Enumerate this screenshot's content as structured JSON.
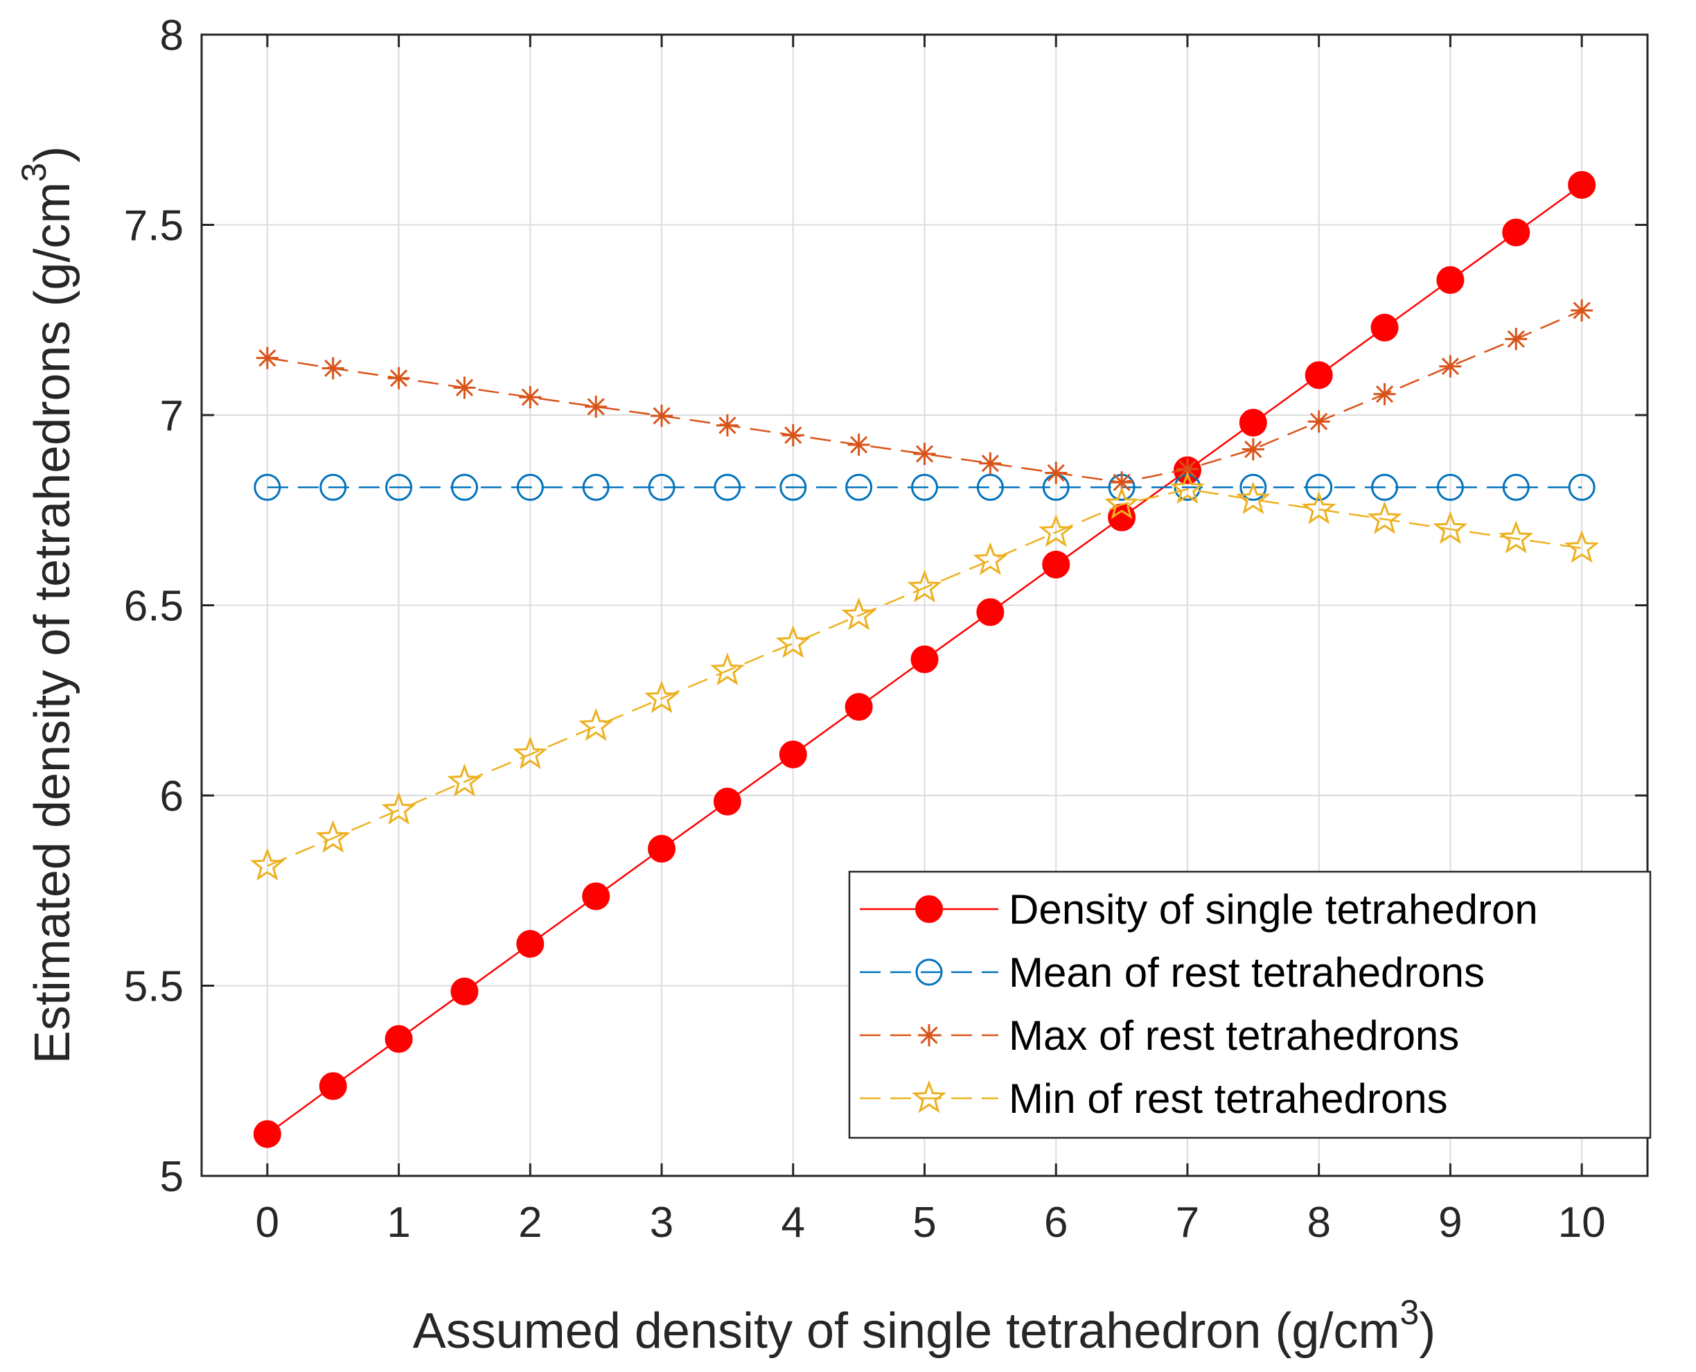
{
  "chart_data": {
    "type": "line",
    "xlabel": "Assumed density of single tetrahedron (g/cm",
    "xlabel_sup": "3",
    "xlabel_close": ")",
    "ylabel": "Estimated density of tetrahedrons (g/cm",
    "ylabel_sup": "3",
    "ylabel_close": ")",
    "xlim": [
      -0.5,
      10.5
    ],
    "ylim": [
      5,
      8
    ],
    "xticks": [
      0,
      1,
      2,
      3,
      4,
      5,
      6,
      7,
      8,
      9,
      10
    ],
    "xtick_labels": [
      "0",
      "1",
      "2",
      "3",
      "4",
      "5",
      "6",
      "7",
      "8",
      "9",
      "10"
    ],
    "yticks": [
      5,
      5.5,
      6,
      6.5,
      7,
      7.5,
      8
    ],
    "ytick_labels": [
      "5",
      "5.5",
      "6",
      "6.5",
      "7",
      "7.5",
      "8"
    ],
    "grid": true,
    "legend_position": "bottom-right",
    "x": [
      0,
      0.5,
      1,
      1.5,
      2,
      2.5,
      3,
      3.5,
      4,
      4.5,
      5,
      5.5,
      6,
      6.5,
      7,
      7.5,
      8,
      8.5,
      9,
      9.5,
      10
    ],
    "series": [
      {
        "name": "Density of single tetrahedron",
        "color": "#ff0000",
        "marker": "filled-circle",
        "line": "solid",
        "values": [
          5.11,
          5.236,
          5.36,
          5.485,
          5.61,
          5.735,
          5.86,
          5.984,
          6.108,
          6.233,
          6.358,
          6.482,
          6.607,
          6.731,
          6.855,
          6.98,
          7.105,
          7.23,
          7.355,
          7.48,
          7.605
        ]
      },
      {
        "name": "Mean of rest tetrahedrons",
        "color": "#0072bd",
        "marker": "open-circle",
        "line": "dashed",
        "values": [
          6.81,
          6.81,
          6.81,
          6.81,
          6.81,
          6.81,
          6.81,
          6.81,
          6.81,
          6.81,
          6.81,
          6.81,
          6.81,
          6.81,
          6.81,
          6.81,
          6.81,
          6.81,
          6.81,
          6.81,
          6.81
        ]
      },
      {
        "name": "Max of rest tetrahedrons",
        "color": "#d95319",
        "marker": "asterisk",
        "line": "dashed",
        "values": [
          7.15,
          7.123,
          7.097,
          7.072,
          7.047,
          7.022,
          6.998,
          6.973,
          6.947,
          6.922,
          6.898,
          6.873,
          6.848,
          6.823,
          6.858,
          6.91,
          6.983,
          7.055,
          7.128,
          7.2,
          7.275
        ]
      },
      {
        "name": "Min of rest tetrahedrons",
        "color": "#edb120",
        "marker": "open-star",
        "line": "dashed",
        "values": [
          5.815,
          5.888,
          5.962,
          6.036,
          6.108,
          6.182,
          6.255,
          6.328,
          6.4,
          6.473,
          6.546,
          6.618,
          6.692,
          6.765,
          6.805,
          6.778,
          6.752,
          6.726,
          6.7,
          6.675,
          6.65
        ]
      }
    ]
  }
}
